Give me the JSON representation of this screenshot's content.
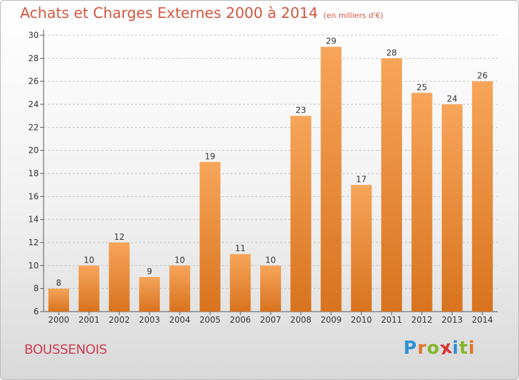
{
  "title": "Achats et Charges Externes 2000 à 2014",
  "unit": "(en milliers d'€)",
  "commune": "BOUSSENOIS",
  "logo": {
    "letters": [
      "P",
      "r",
      "o",
      "x",
      "i",
      "t",
      "i"
    ],
    "colors": [
      "#2e8fd4",
      "#e0762a",
      "#86b52d",
      "#d8332f",
      "#2e8fd4",
      "#86b52d",
      "#e0762a"
    ]
  },
  "colors": {
    "bar_top": "#f7a55a",
    "bar_bottom": "#d8731e",
    "title": "#d5563f",
    "commune": "#cf3f54"
  },
  "chart_data": {
    "type": "bar",
    "categories": [
      "2000",
      "2001",
      "2002",
      "2003",
      "2004",
      "2005",
      "2006",
      "2007",
      "2008",
      "2009",
      "2010",
      "2011",
      "2012",
      "2013",
      "2014"
    ],
    "values": [
      8,
      10,
      12,
      9,
      10,
      19,
      11,
      10,
      23,
      29,
      17,
      28,
      25,
      24,
      26
    ],
    "ylim": [
      6,
      30
    ],
    "yticks": [
      6,
      8,
      10,
      12,
      14,
      16,
      18,
      20,
      22,
      24,
      26,
      28,
      30
    ],
    "grid": "horizontal-dashed",
    "data_labels": true
  }
}
